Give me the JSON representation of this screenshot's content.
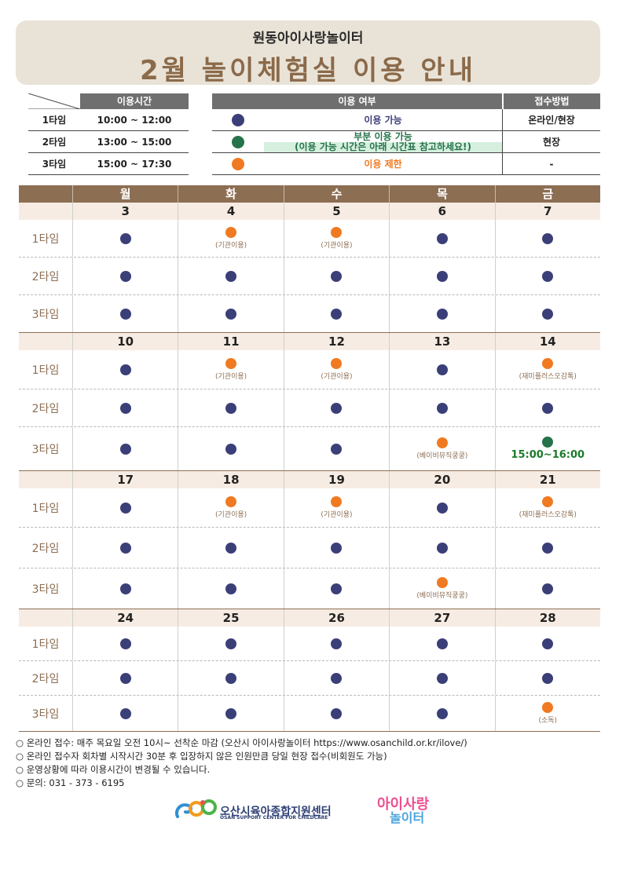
{
  "header": {
    "org": "원동아이사랑놀이터",
    "title": "2월 놀이체험실 이용 안내"
  },
  "time_table": {
    "header": "이용시간",
    "rows": [
      {
        "label": "1타임",
        "time": "10:00 ~ 12:00"
      },
      {
        "label": "2타임",
        "time": "13:00 ~ 15:00"
      },
      {
        "label": "3타임",
        "time": "15:00 ~ 17:30"
      }
    ]
  },
  "legend": {
    "header_status": "이용 여부",
    "header_method": "접수방법",
    "rows": [
      {
        "color": "blue",
        "text": "이용 가능",
        "text2": "",
        "method": "온라인/현장"
      },
      {
        "color": "green",
        "text": "부분 이용 가능",
        "text2": "(이용 가능 시간은 아래 시간표 참고하세요!)",
        "method": "현장"
      },
      {
        "color": "orange",
        "text": "이용 제한",
        "text2": "",
        "method": "-"
      }
    ]
  },
  "colors": {
    "blue": "#3b3f78",
    "green": "#25734a",
    "orange": "#f07a22",
    "brown": "#8c6e53"
  },
  "calendar": {
    "weekdays": [
      "월",
      "화",
      "수",
      "목",
      "금"
    ],
    "slot_labels": [
      "1타임",
      "2타임",
      "3타임"
    ],
    "weeks": [
      {
        "dates": [
          "3",
          "4",
          "5",
          "6",
          "7"
        ],
        "slots": [
          [
            {
              "c": "blue",
              "n": ""
            },
            {
              "c": "orange",
              "n": "(기관이용)"
            },
            {
              "c": "orange",
              "n": "(기관이용)"
            },
            {
              "c": "blue",
              "n": ""
            },
            {
              "c": "blue",
              "n": ""
            }
          ],
          [
            {
              "c": "blue",
              "n": ""
            },
            {
              "c": "blue",
              "n": ""
            },
            {
              "c": "blue",
              "n": ""
            },
            {
              "c": "blue",
              "n": ""
            },
            {
              "c": "blue",
              "n": ""
            }
          ],
          [
            {
              "c": "blue",
              "n": ""
            },
            {
              "c": "blue",
              "n": ""
            },
            {
              "c": "blue",
              "n": ""
            },
            {
              "c": "blue",
              "n": ""
            },
            {
              "c": "blue",
              "n": ""
            }
          ]
        ]
      },
      {
        "dates": [
          "10",
          "11",
          "12",
          "13",
          "14"
        ],
        "slots": [
          [
            {
              "c": "blue",
              "n": ""
            },
            {
              "c": "orange",
              "n": "(기관이용)"
            },
            {
              "c": "orange",
              "n": "(기관이용)"
            },
            {
              "c": "blue",
              "n": ""
            },
            {
              "c": "orange",
              "n": "(재미플러스오감톡)"
            }
          ],
          [
            {
              "c": "blue",
              "n": ""
            },
            {
              "c": "blue",
              "n": ""
            },
            {
              "c": "blue",
              "n": ""
            },
            {
              "c": "blue",
              "n": ""
            },
            {
              "c": "blue",
              "n": ""
            }
          ],
          [
            {
              "c": "blue",
              "n": ""
            },
            {
              "c": "blue",
              "n": ""
            },
            {
              "c": "blue",
              "n": ""
            },
            {
              "c": "orange",
              "n": "(베이비뮤직쿵쿵)"
            },
            {
              "c": "green",
              "n": "15:00~16:00"
            }
          ]
        ]
      },
      {
        "dates": [
          "17",
          "18",
          "19",
          "20",
          "21"
        ],
        "slots": [
          [
            {
              "c": "blue",
              "n": ""
            },
            {
              "c": "orange",
              "n": "(기관이용)"
            },
            {
              "c": "orange",
              "n": "(기관이용)"
            },
            {
              "c": "blue",
              "n": ""
            },
            {
              "c": "orange",
              "n": "(재미플러스오감톡)"
            }
          ],
          [
            {
              "c": "blue",
              "n": ""
            },
            {
              "c": "blue",
              "n": ""
            },
            {
              "c": "blue",
              "n": ""
            },
            {
              "c": "blue",
              "n": ""
            },
            {
              "c": "blue",
              "n": ""
            }
          ],
          [
            {
              "c": "blue",
              "n": ""
            },
            {
              "c": "blue",
              "n": ""
            },
            {
              "c": "blue",
              "n": ""
            },
            {
              "c": "orange",
              "n": "(베이비뮤직쿵쿵)"
            },
            {
              "c": "blue",
              "n": ""
            }
          ]
        ]
      },
      {
        "dates": [
          "24",
          "25",
          "26",
          "27",
          "28"
        ],
        "slots": [
          [
            {
              "c": "blue",
              "n": ""
            },
            {
              "c": "blue",
              "n": ""
            },
            {
              "c": "blue",
              "n": ""
            },
            {
              "c": "blue",
              "n": ""
            },
            {
              "c": "blue",
              "n": ""
            }
          ],
          [
            {
              "c": "blue",
              "n": ""
            },
            {
              "c": "blue",
              "n": ""
            },
            {
              "c": "blue",
              "n": ""
            },
            {
              "c": "blue",
              "n": ""
            },
            {
              "c": "blue",
              "n": ""
            }
          ],
          [
            {
              "c": "blue",
              "n": ""
            },
            {
              "c": "blue",
              "n": ""
            },
            {
              "c": "blue",
              "n": ""
            },
            {
              "c": "blue",
              "n": ""
            },
            {
              "c": "orange",
              "n": "(소독)"
            }
          ]
        ]
      }
    ]
  },
  "footer_notes": [
    "○ 온라인 접수: 매주 목요일 오전 10시~ 선착순 마감 (오산시 아이사랑놀이터 https://www.osanchild.or.kr/ilove/)",
    "○ 온라인 접수자 회차별 시작시간 30분 후 입장하지 않은 인원만큼 당일 현장 접수(비회원도 가능)",
    "○ 운영상황에 따라 이용시간이 변경될 수 있습니다.",
    "○ 문의: 031 - 373 - 6195"
  ],
  "logos": {
    "center_name": "오산시육아종합지원센터",
    "center_en": "OSAN SUPPORT CENTER FOR CHILDCARE",
    "playground_line1": "아이사랑",
    "playground_line2": "놀이터"
  }
}
